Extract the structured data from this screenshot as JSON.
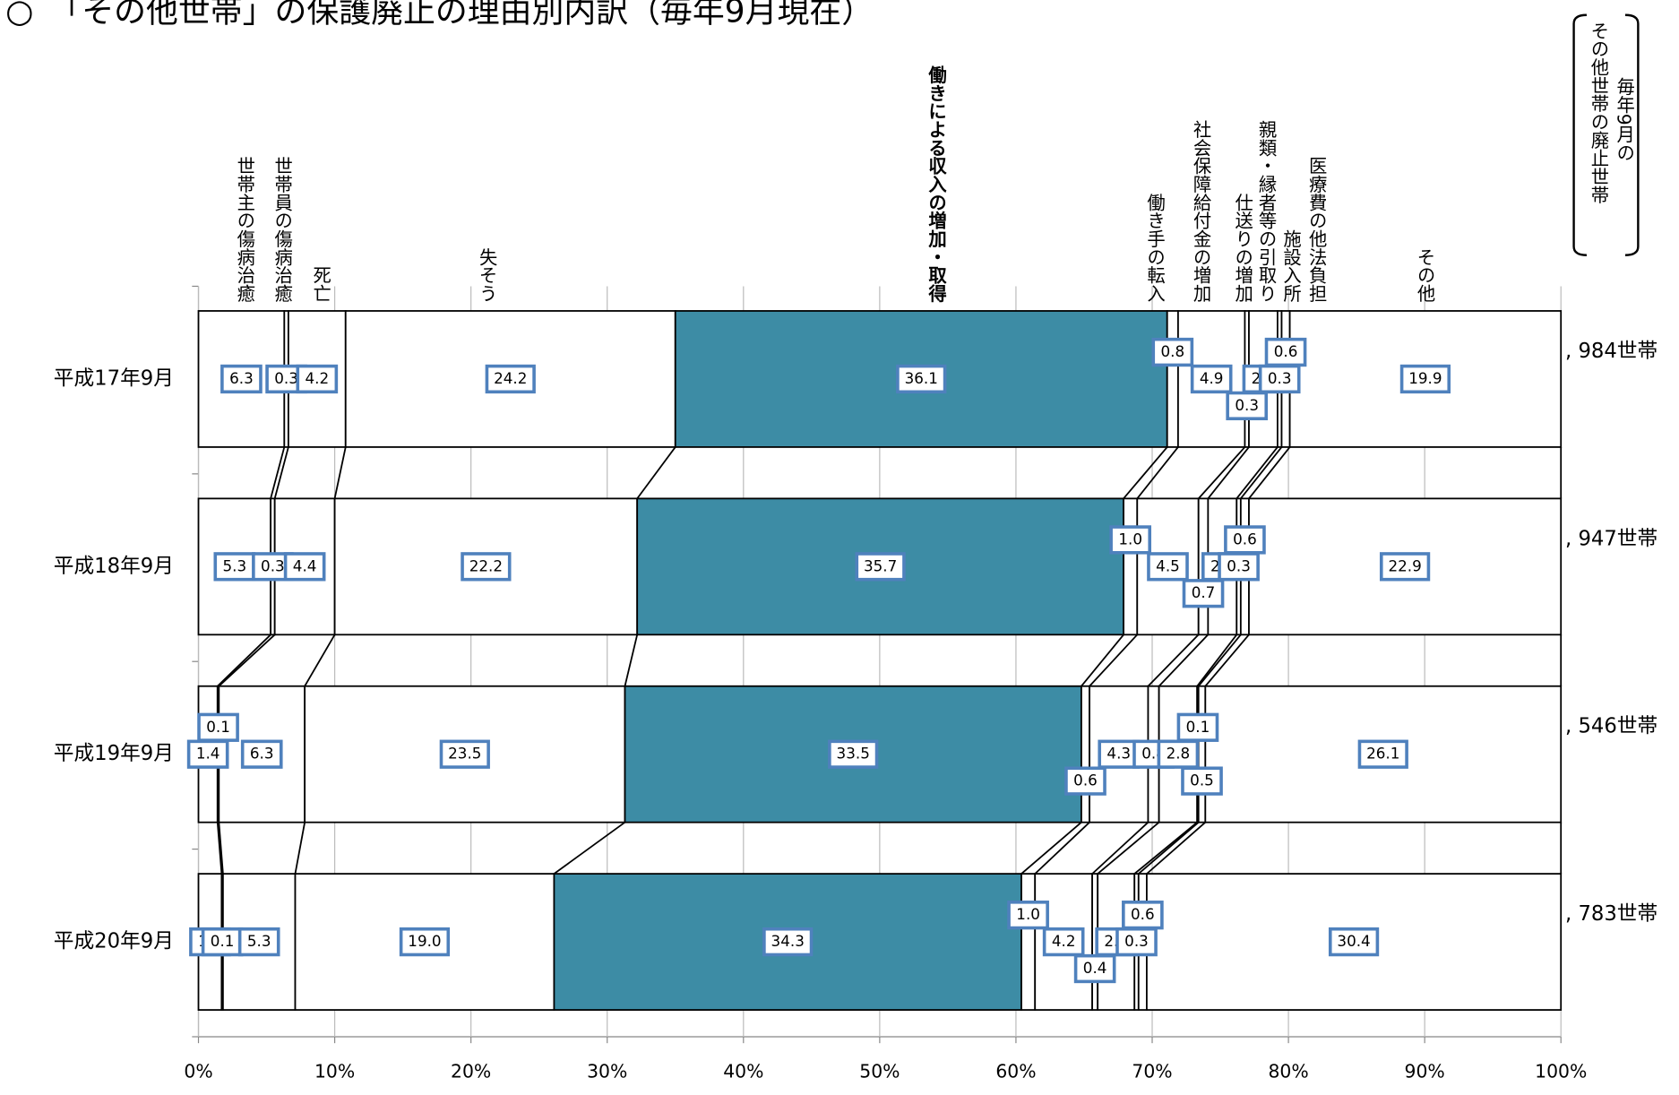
{
  "chart_data": {
    "type": "stacked-bar-horizontal",
    "title": "○　「その他世帯」の保護廃止の理由別内訳（毎年9月現在）",
    "categories": [
      "平成17年9月",
      "平成18年9月",
      "平成19年9月",
      "平成20年9月"
    ],
    "series": [
      {
        "name": "世帯主の傷病治癒",
        "color": "#ffffff",
        "values": [
          6.3,
          5.3,
          1.4,
          1.7
        ],
        "value_labels": [
          "6.3",
          "5.3",
          "1.4",
          "1.7"
        ]
      },
      {
        "name": "世帯員の傷病治癒",
        "color": "#ffffff",
        "values": [
          0.3,
          0.3,
          0.1,
          0.1
        ],
        "value_labels": [
          "0.3",
          "0.3",
          "0.1",
          "0.1"
        ]
      },
      {
        "name": "死亡",
        "color": "#ffffff",
        "values": [
          4.2,
          4.4,
          6.3,
          5.3
        ],
        "value_labels": [
          "4.2",
          "4.4",
          "6.3",
          "5.3"
        ]
      },
      {
        "name": "失そう",
        "color": "#ffffff",
        "values": [
          24.2,
          22.2,
          23.5,
          19.0
        ],
        "value_labels": [
          "24.2",
          "22.2",
          "23.5",
          "19.0"
        ]
      },
      {
        "name": "働きによる収入の増加・取得",
        "color": "#3d8ca5",
        "values": [
          36.1,
          35.7,
          33.5,
          34.3
        ],
        "value_labels": [
          "36.1",
          "35.7",
          "33.5",
          "34.3"
        ]
      },
      {
        "name": "働き手の転入",
        "color": "#ffffff",
        "values": [
          0.8,
          1.0,
          0.6,
          1.0
        ],
        "value_labels": [
          "0.8",
          "1.0",
          "0.6",
          "1.0"
        ]
      },
      {
        "name": "社会保障給付金の増加",
        "color": "#ffffff",
        "values": [
          4.9,
          4.5,
          4.3,
          4.2
        ],
        "value_labels": [
          "4.9",
          "4.5",
          "4.3",
          "4.2"
        ]
      },
      {
        "name": "親類・縁者等の引取り",
        "color": "#ffffff",
        "values": [
          0.3,
          0.7,
          0.8,
          0.4
        ],
        "value_labels": [
          "0.3",
          "0.7",
          "0.8",
          "0.4"
        ]
      },
      {
        "name": "仕送りの増加",
        "color": "#ffffff",
        "values": [
          2.1,
          2.1,
          2.8,
          2.7
        ],
        "value_labels": [
          "2.1",
          "2.1",
          "2.8",
          "2.7"
        ]
      },
      {
        "name": "施設入所",
        "color": "#ffffff",
        "values": [
          0.3,
          0.3,
          0.1,
          0.3
        ],
        "value_labels": [
          "0.3",
          "0.3",
          "0.1",
          "0.3"
        ]
      },
      {
        "name": "医療費の他法負担",
        "color": "#ffffff",
        "values": [
          0.6,
          0.6,
          0.5,
          0.6
        ],
        "value_labels": [
          "0.6",
          "0.6",
          "0.5",
          "0.6"
        ]
      },
      {
        "name": "その他",
        "color": "#ffffff",
        "values": [
          19.9,
          22.9,
          26.1,
          30.4
        ],
        "value_labels": [
          "19.9",
          "22.9",
          "26.1",
          "30.4"
        ]
      }
    ],
    "totals_title": [
      "毎年9月の",
      "その他世帯の廃止世帯"
    ],
    "totals": [
      ", 984世帯",
      ", 947世帯",
      ", 546世帯",
      ", 783世帯"
    ],
    "xlim": [
      0,
      100
    ],
    "xticks": [
      {
        "value": 0,
        "label": "0%"
      },
      {
        "value": 10,
        "label": "10%"
      },
      {
        "value": 20,
        "label": "20%"
      },
      {
        "value": 30,
        "label": "30%"
      },
      {
        "value": 40,
        "label": "40%"
      },
      {
        "value": 50,
        "label": "50%"
      },
      {
        "value": 60,
        "label": "60%"
      },
      {
        "value": 70,
        "label": "70%"
      },
      {
        "value": 80,
        "label": "80%"
      },
      {
        "value": 90,
        "label": "90%"
      },
      {
        "value": 100,
        "label": "100%"
      }
    ]
  }
}
